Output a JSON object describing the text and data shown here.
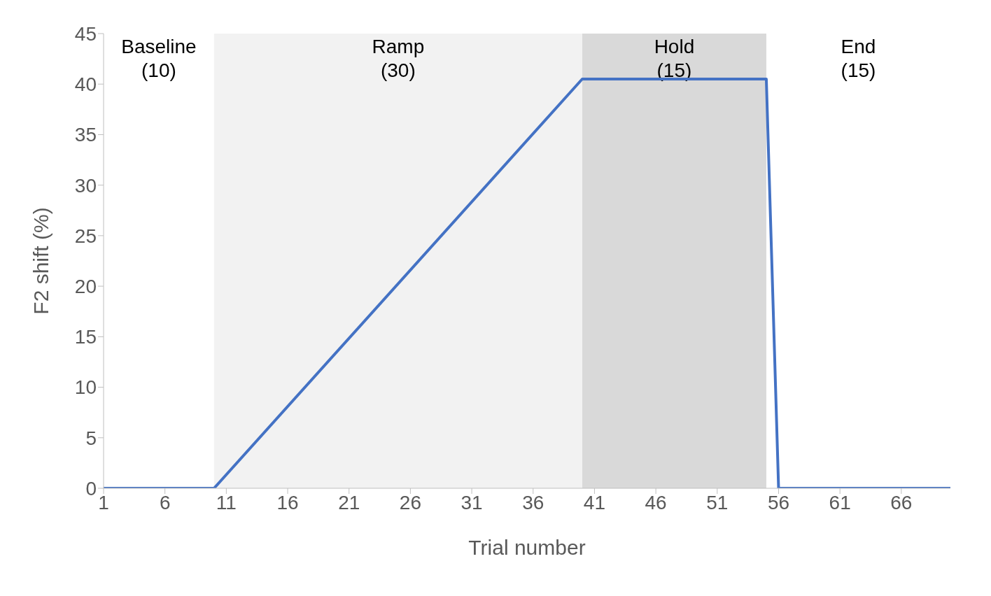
{
  "chart_data": {
    "type": "line",
    "xlabel": "Trial number",
    "ylabel": "F2 shift (%)",
    "x": [
      1,
      10,
      40,
      55,
      56,
      70
    ],
    "series": [
      {
        "color": "#4472c4",
        "values": [
          0,
          0,
          40.5,
          40.5,
          0,
          0
        ]
      }
    ],
    "xlim": [
      1,
      70
    ],
    "xticks": [
      1,
      6,
      11,
      16,
      21,
      26,
      31,
      36,
      41,
      46,
      51,
      56,
      61,
      66
    ],
    "ylim": [
      0,
      45
    ],
    "yticks": [
      0,
      5,
      10,
      15,
      20,
      25,
      30,
      35,
      40,
      45
    ],
    "grid": false,
    "marker": "none",
    "line_style": "solid",
    "annotations": [
      "Baseline\n(10)",
      "End\n(15)"
    ],
    "bands": [
      {
        "axis": "x",
        "from": 10,
        "to": 40,
        "label": "Ramp\n(30)",
        "color": "#f2f2f2"
      },
      {
        "axis": "x",
        "from": 40,
        "to": 55,
        "label": "Hold\n(15)",
        "color": "#d9d9d9"
      }
    ]
  }
}
